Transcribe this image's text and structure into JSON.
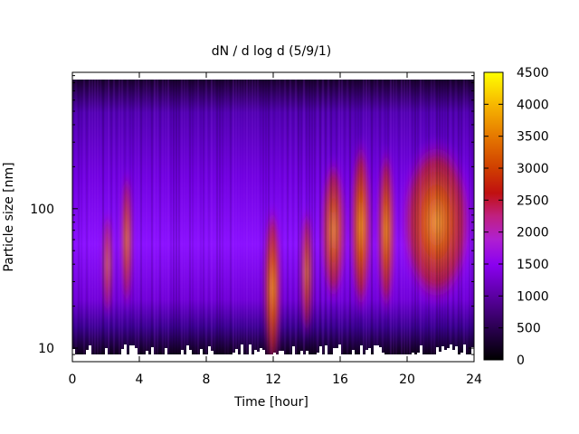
{
  "chart_data": {
    "type": "heatmap",
    "title": "dN / d log d (5/9/1)",
    "xlabel": "Time [hour]",
    "ylabel": "Particle size [nm]",
    "x_range": [
      0,
      24
    ],
    "x_ticks": [
      0,
      4,
      8,
      12,
      16,
      20,
      24
    ],
    "y_scale": "log",
    "y_range": [
      8,
      950
    ],
    "y_ticks": [
      10,
      100
    ],
    "colorbar": {
      "range": [
        0,
        4500
      ],
      "ticks": [
        0,
        500,
        1000,
        1500,
        2000,
        2500,
        3000,
        3500,
        4000,
        4500
      ],
      "colormap": "gnuplot-style (black → purple → red → orange → yellow)",
      "colors": [
        "#000000",
        "#5a00a0",
        "#a000ff",
        "#cc33bb",
        "#cc2200",
        "#e65c00",
        "#f7a600",
        "#ffff00"
      ]
    },
    "series": [
      {
        "t_start": 0,
        "t_end": 24,
        "center_nm": 110,
        "peak_dN_dlogd": 900
      },
      {
        "t_start": 1.8,
        "t_end": 2.4,
        "center_nm": 40,
        "peak_dN_dlogd": 1800
      },
      {
        "t_start": 2.9,
        "t_end": 3.6,
        "center_nm": 60,
        "peak_dN_dlogd": 2800
      },
      {
        "t_start": 11.4,
        "t_end": 12.5,
        "center_nm": 27,
        "peak_dN_dlogd": 3600
      },
      {
        "t_start": 13.6,
        "t_end": 14.4,
        "center_nm": 35,
        "peak_dN_dlogd": 2500
      },
      {
        "t_start": 14.8,
        "t_end": 16.4,
        "center_nm": 70,
        "peak_dN_dlogd": 2900
      },
      {
        "t_start": 16.6,
        "t_end": 17.9,
        "center_nm": 75,
        "peak_dN_dlogd": 3800
      },
      {
        "t_start": 18.2,
        "t_end": 19.3,
        "center_nm": 70,
        "peak_dN_dlogd": 3600
      },
      {
        "t_start": 19.5,
        "t_end": 24,
        "center_nm": 80,
        "peak_dN_dlogd": 3500
      }
    ]
  }
}
